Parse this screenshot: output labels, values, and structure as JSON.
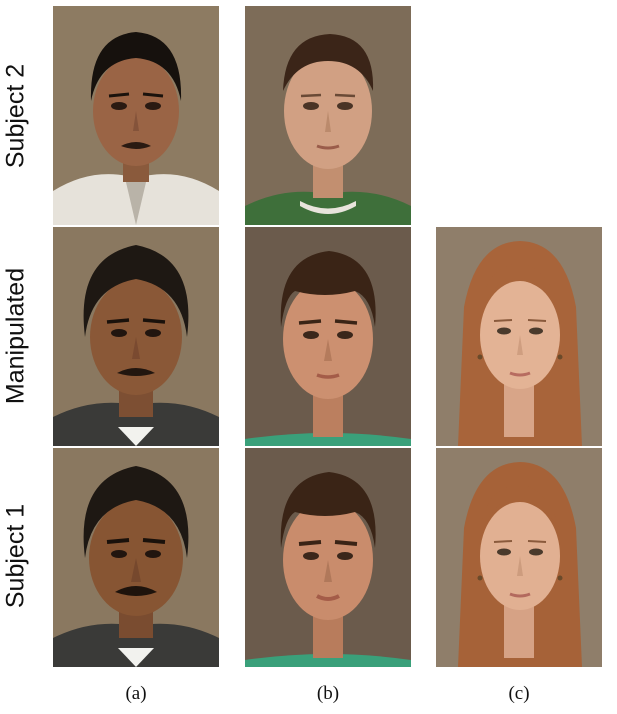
{
  "rows": {
    "subject2": "Subject 2",
    "manipulated": "Manipulated",
    "subject1": "Subject 1"
  },
  "columns": {
    "a": "(a)",
    "b": "(b)",
    "c": "(c)"
  },
  "colors": {
    "background_a": "#8a7960",
    "background_b": "#7a6a58",
    "background_c": "#8f7e6c",
    "skin_dark": "#8d5d3e",
    "skin_light": "#d9a98a",
    "skin_fair": "#e6b89c",
    "hair_black": "#1c1612",
    "hair_brown": "#3a2519",
    "hair_auburn": "#a35e33"
  }
}
